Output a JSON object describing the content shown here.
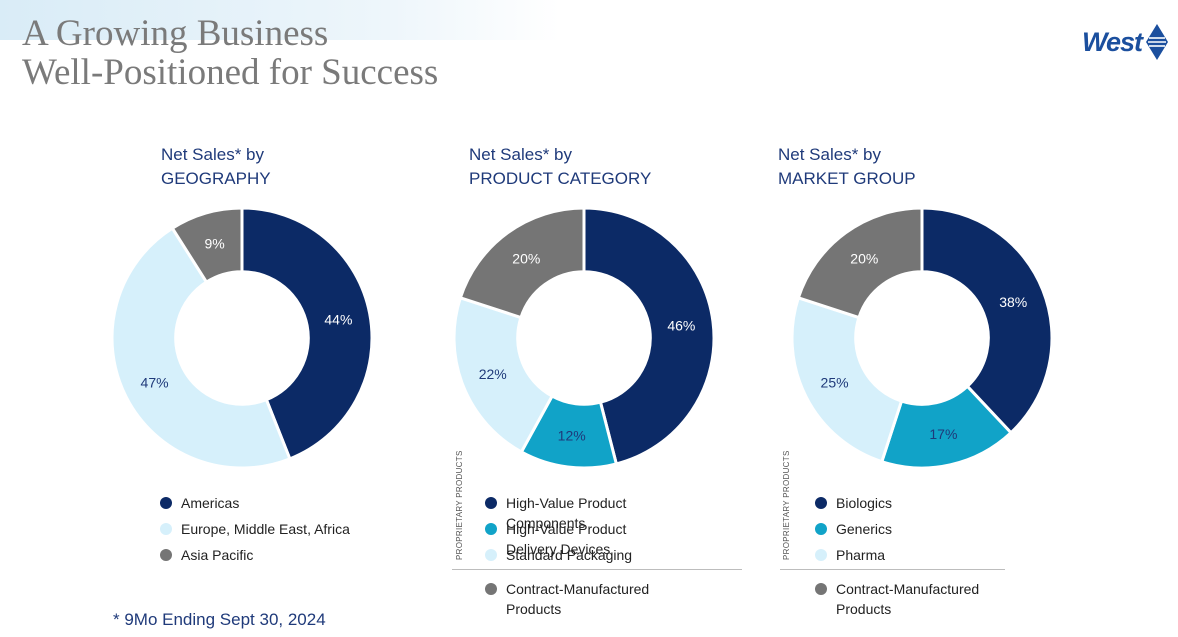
{
  "header": {
    "title_line1": "A Growing Business",
    "title_line2": "Well-Positioned for Success",
    "logo_text": "West"
  },
  "footnote": "* 9Mo Ending Sept 30, 2024",
  "colors": {
    "dark_navy": "#0c2a66",
    "teal": "#11a3c8",
    "light_blue": "#d6f0fb",
    "gray": "#757575",
    "heading_blue": "#1f3a7a"
  },
  "chart_data": [
    {
      "type": "pie",
      "title_line1": "Net Sales* by",
      "title_line2": "GEOGRAPHY",
      "series": [
        {
          "name": "Americas",
          "value": 44,
          "label": "44%",
          "color": "#0c2a66",
          "label_color": "#ffffff"
        },
        {
          "name": "Europe, Middle East, Africa",
          "value": 47,
          "label": "47%",
          "color": "#d6f0fb",
          "label_color": "#1f3a7a"
        },
        {
          "name": "Asia Pacific",
          "value": 9,
          "label": "9%",
          "color": "#757575",
          "label_color": "#ffffff"
        }
      ],
      "legend": [
        {
          "label": "Americas",
          "color": "#0c2a66"
        },
        {
          "label": "Europe, Middle East, Africa",
          "color": "#d6f0fb"
        },
        {
          "label": "Asia Pacific",
          "color": "#757575"
        }
      ]
    },
    {
      "type": "pie",
      "title_line1": "Net Sales* by",
      "title_line2": "PRODUCT CATEGORY",
      "series": [
        {
          "name": "High-Value Product Components",
          "value": 46,
          "label": "46%",
          "color": "#0c2a66",
          "label_color": "#ffffff"
        },
        {
          "name": "High-Value Product Delivery Devices",
          "value": 12,
          "label": "12%",
          "color": "#11a3c8",
          "label_color": "#1f3a7a"
        },
        {
          "name": "Standard Packaging",
          "value": 22,
          "label": "22%",
          "color": "#d6f0fb",
          "label_color": "#1f3a7a"
        },
        {
          "name": "Contract-Manufactured Products",
          "value": 20,
          "label": "20%",
          "color": "#757575",
          "label_color": "#ffffff"
        }
      ],
      "group_label": "PROPRIETARY PRODUCTS",
      "legend": [
        {
          "label": "High-Value Product Components",
          "color": "#0c2a66"
        },
        {
          "label": "High-Value Product Delivery Devices",
          "color": "#11a3c8"
        },
        {
          "label": "Standard Packaging",
          "color": "#d6f0fb"
        },
        {
          "label": "Contract-Manufactured Products",
          "color": "#757575"
        }
      ]
    },
    {
      "type": "pie",
      "title_line1": "Net Sales* by",
      "title_line2": "MARKET GROUP",
      "series": [
        {
          "name": "Biologics",
          "value": 38,
          "label": "38%",
          "color": "#0c2a66",
          "label_color": "#ffffff"
        },
        {
          "name": "Generics",
          "value": 17,
          "label": "17%",
          "color": "#11a3c8",
          "label_color": "#1f3a7a"
        },
        {
          "name": "Pharma",
          "value": 25,
          "label": "25%",
          "color": "#d6f0fb",
          "label_color": "#1f3a7a"
        },
        {
          "name": "Contract-Manufactured Products",
          "value": 20,
          "label": "20%",
          "color": "#757575",
          "label_color": "#ffffff"
        }
      ],
      "group_label": "PROPRIETARY PRODUCTS",
      "legend": [
        {
          "label": "Biologics",
          "color": "#0c2a66"
        },
        {
          "label": "Generics",
          "color": "#11a3c8"
        },
        {
          "label": "Pharma",
          "color": "#d6f0fb"
        },
        {
          "label": "Contract-Manufactured Products",
          "color": "#757575"
        }
      ]
    }
  ]
}
